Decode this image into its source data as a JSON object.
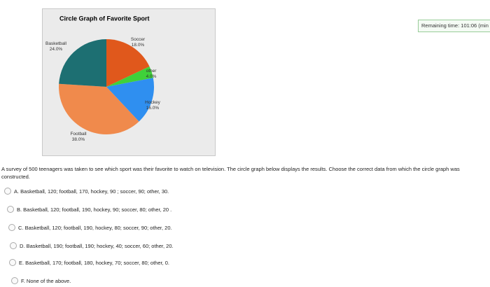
{
  "chart_data": {
    "type": "pie",
    "title": "Circle Graph of Favorite Sport",
    "categories": [
      "Soccer",
      "other",
      "Hockey",
      "Football",
      "Basketball"
    ],
    "values": [
      18,
      4,
      16,
      38,
      24
    ],
    "value_labels": [
      "18.0%",
      "4.0%",
      "16.0%",
      "38.0%",
      "24.0%"
    ],
    "colors": [
      "#e0581c",
      "#3fd13a",
      "#2f8ff0",
      "#f08a4c",
      "#1d6f72"
    ]
  },
  "timer": "Remaining time: 101:06 (min",
  "question": "A survey of 500 teenagers was taken to see which sport was their favorite to watch on television. The circle graph below displays the results. Choose the correct data from which the circle graph was constructed.",
  "options": [
    "A. Basketball, 120; football, 170, hockey, 90 ; soccer, 90; other, 30.",
    "B. Basketball, 120; football, 190, hockey, 90; soccer, 80; other, 20 .",
    "C. Basketball, 120; football, 190, hockey, 80; soccer, 90; other, 20.",
    "D. Basketball, 190; football, 190; hockey, 40; soccer, 60; other, 20.",
    "E. Basketball, 170; football, 180, hockey, 70; soccer, 80; other, 0.",
    "F. None of the above."
  ]
}
